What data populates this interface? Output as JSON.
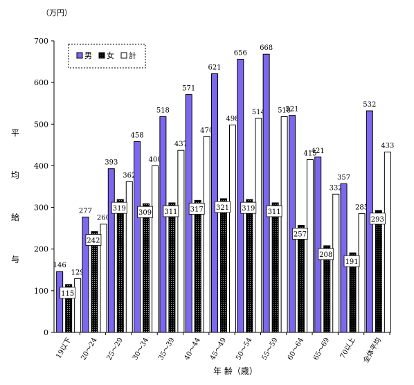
{
  "chart_data": {
    "type": "bar",
    "unit_label": "（万円）",
    "ylabel": "平均給与",
    "xlabel": "年 齢（歳）",
    "ylim": [
      0,
      700
    ],
    "yticks": [
      0,
      100,
      200,
      300,
      400,
      500,
      600,
      700
    ],
    "categories": [
      "19以下",
      "20～24",
      "25～29",
      "30～34",
      "35～39",
      "40～44",
      "45～49",
      "50～54",
      "55～59",
      "60～64",
      "65～69",
      "70以上",
      "全体平均"
    ],
    "series": [
      {
        "name": "男",
        "color": "#7b68ee",
        "values": [
          146,
          277,
          393,
          458,
          518,
          571,
          621,
          656,
          668,
          521,
          421,
          357,
          532
        ]
      },
      {
        "name": "女",
        "color": "#000000",
        "values": [
          115,
          242,
          319,
          309,
          311,
          317,
          321,
          319,
          311,
          257,
          208,
          191,
          293
        ]
      },
      {
        "name": "計",
        "color": "#ffffff",
        "values": [
          129,
          260,
          362,
          400,
          437,
          470,
          498,
          514,
          518,
          415,
          332,
          285,
          433
        ]
      }
    ],
    "legend_position": "top-left",
    "grid": false
  }
}
